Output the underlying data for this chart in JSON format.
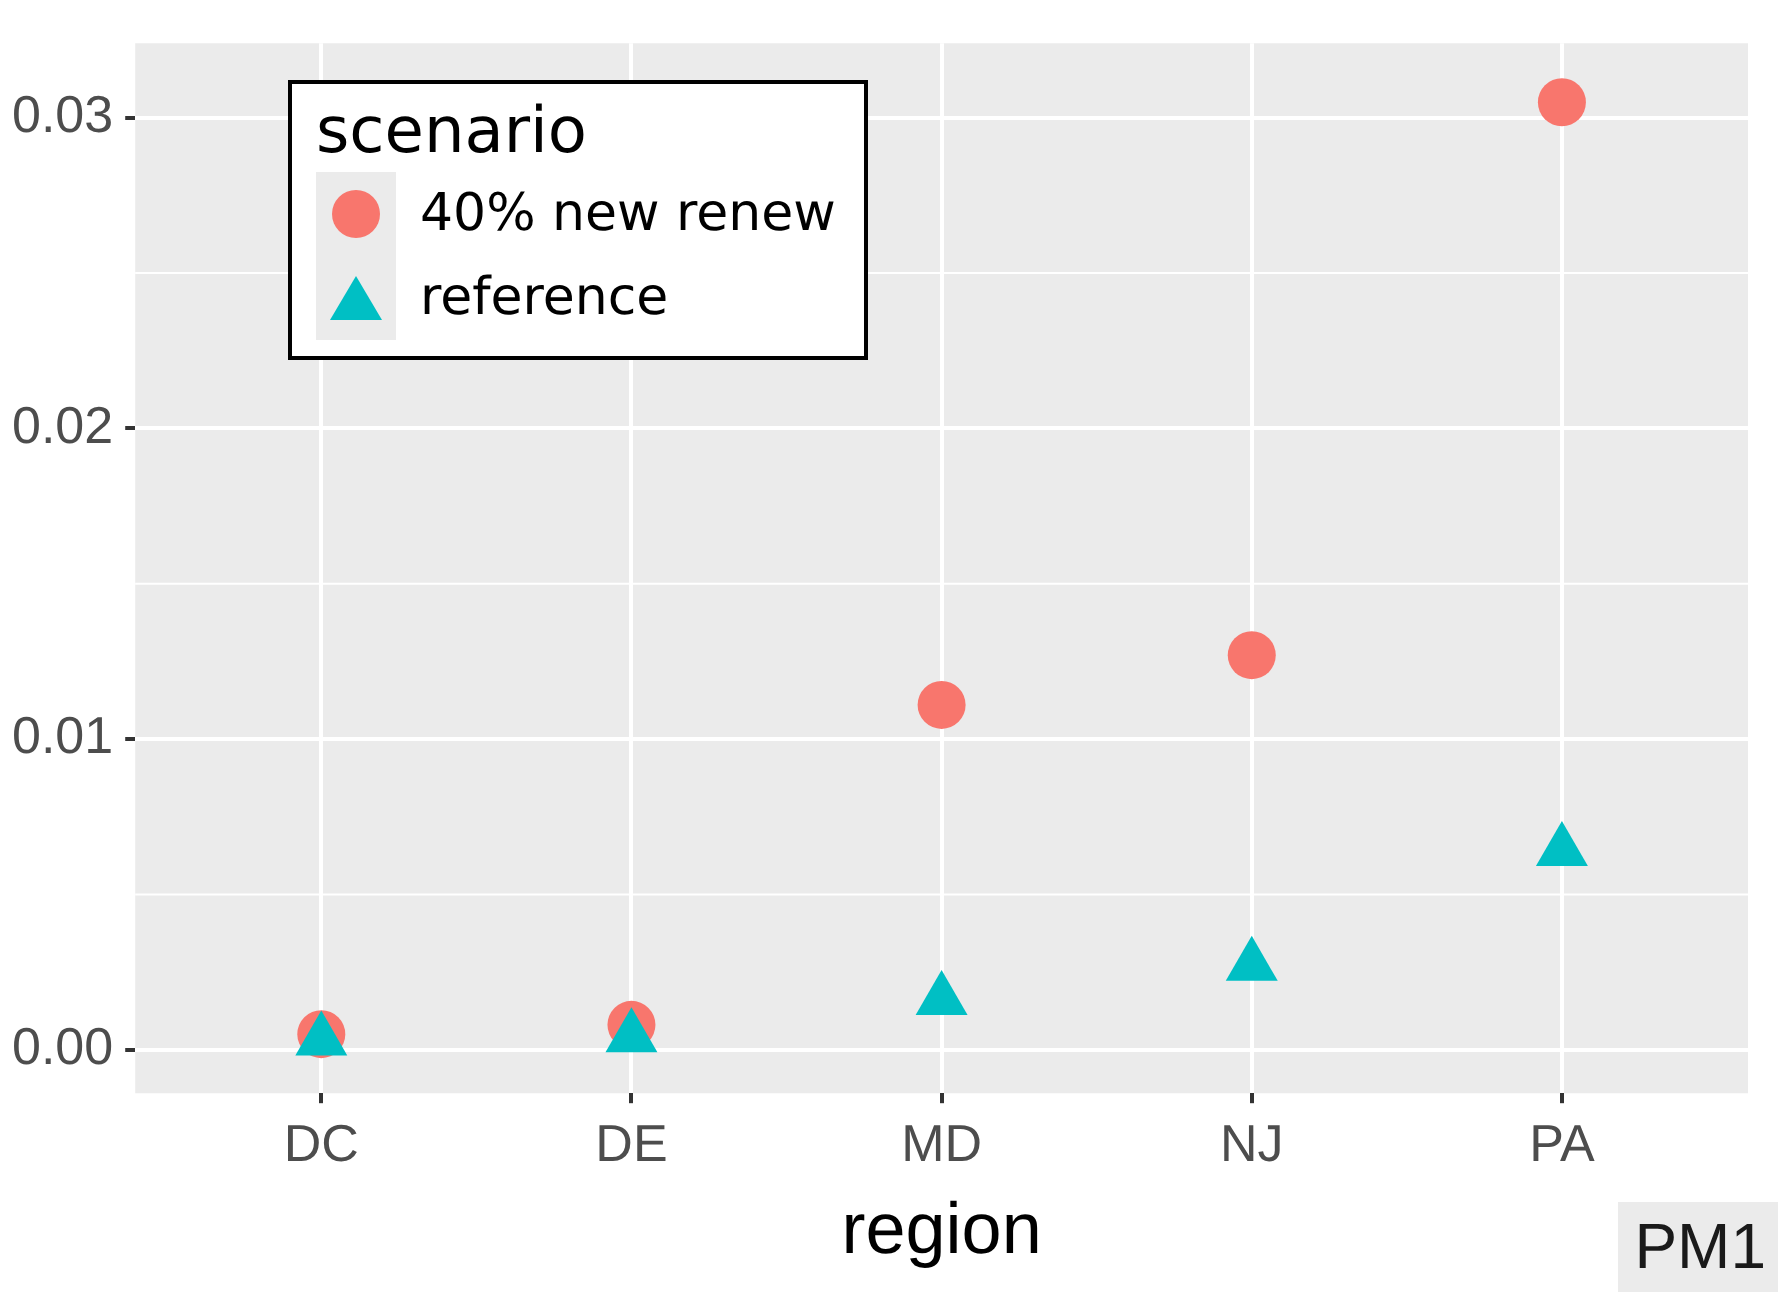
{
  "chart_data": {
    "type": "scatter",
    "xlabel": "region",
    "legend_title": "scenario",
    "categories": [
      "DC",
      "DE",
      "MD",
      "NJ",
      "PA"
    ],
    "series": [
      {
        "name": "40% new renew",
        "color": "#f8766d",
        "marker": "circle",
        "values": [
          0.0005,
          0.0008,
          0.0111,
          0.0127,
          0.0305
        ]
      },
      {
        "name": "reference",
        "color": "#00bfc4",
        "marker": "triangle",
        "values": [
          0.0003,
          0.0004,
          0.0016,
          0.0027,
          0.0064
        ]
      }
    ],
    "ylim": [
      -0.0014,
      0.0324
    ],
    "yticks": [
      {
        "value": 0,
        "label": "0.00"
      },
      {
        "value": 0.01,
        "label": "0.01"
      },
      {
        "value": 0.02,
        "label": "0.02"
      },
      {
        "value": 0.03,
        "label": "0.03"
      }
    ],
    "grid": true,
    "legend": "top left",
    "annotations": [
      "PM1"
    ]
  }
}
